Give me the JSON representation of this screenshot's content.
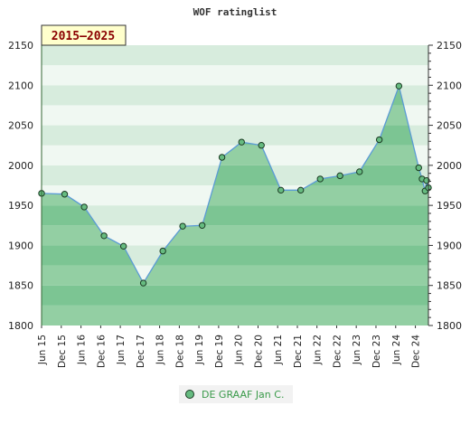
{
  "chart_data": {
    "type": "area",
    "title": "WOF ratinglist",
    "badge": "2015–2025",
    "ylim": [
      1800,
      2150
    ],
    "yticks": [
      1800,
      1850,
      1900,
      1950,
      2000,
      2050,
      2100,
      2150
    ],
    "xlim": [
      "2015-06-01",
      "2025-04-01"
    ],
    "xticks": [
      "2015-06-01",
      "2015-12-01",
      "2016-06-01",
      "2016-12-01",
      "2017-06-01",
      "2017-12-01",
      "2018-06-01",
      "2018-12-01",
      "2019-06-01",
      "2019-12-01",
      "2020-06-01",
      "2020-12-01",
      "2021-06-01",
      "2021-12-01",
      "2022-06-01",
      "2022-12-01",
      "2023-06-01",
      "2023-12-01",
      "2024-06-01",
      "2024-12-01"
    ],
    "xtick_labels": [
      "Jun 15",
      "Dec 15",
      "Jun 16",
      "Dec 16",
      "Jun 17",
      "Dec 17",
      "Jun 18",
      "Dec 18",
      "Jun 19",
      "Dec 19",
      "Jun 20",
      "Dec 20",
      "Jun 21",
      "Dec 21",
      "Jun 22",
      "Dec 22",
      "Jun 23",
      "Dec 23",
      "Jun 24",
      "Dec 24"
    ],
    "series": [
      {
        "name": "DE GRAAF Jan C.",
        "x": [
          "2015-06-01",
          "2016-01-01",
          "2016-07-01",
          "2017-01-01",
          "2017-07-01",
          "2018-01-01",
          "2018-07-01",
          "2019-01-01",
          "2019-07-01",
          "2020-01-01",
          "2020-07-01",
          "2021-01-01",
          "2021-07-01",
          "2022-01-01",
          "2022-07-01",
          "2023-01-01",
          "2023-07-01",
          "2024-01-01",
          "2024-07-01",
          "2025-01-01",
          "2025-02-01",
          "2025-03-01",
          "2025-03-15",
          "2025-04-01"
        ],
        "y": [
          1965,
          1964,
          1948,
          1912,
          1899,
          1853,
          1893,
          1924,
          1925,
          2010,
          2029,
          2025,
          1969,
          1969,
          1983,
          1987,
          1992,
          2032,
          2099,
          1997,
          1983,
          1968,
          1981,
          1972
        ]
      }
    ],
    "band_colors": [
      "#93cfa3",
      "#7cc593"
    ],
    "background_band_colors": [
      "#f0f8f2",
      "#d7ecdd"
    ],
    "grid": false,
    "legend_position": "bottom-center",
    "colors": {
      "line": "#5b9bd5",
      "marker_fill": "#66bb80",
      "marker_edge": "#1a3a22",
      "badge_bg": "#ffffcc"
    }
  },
  "legend": {
    "label": "DE GRAAF Jan C."
  }
}
